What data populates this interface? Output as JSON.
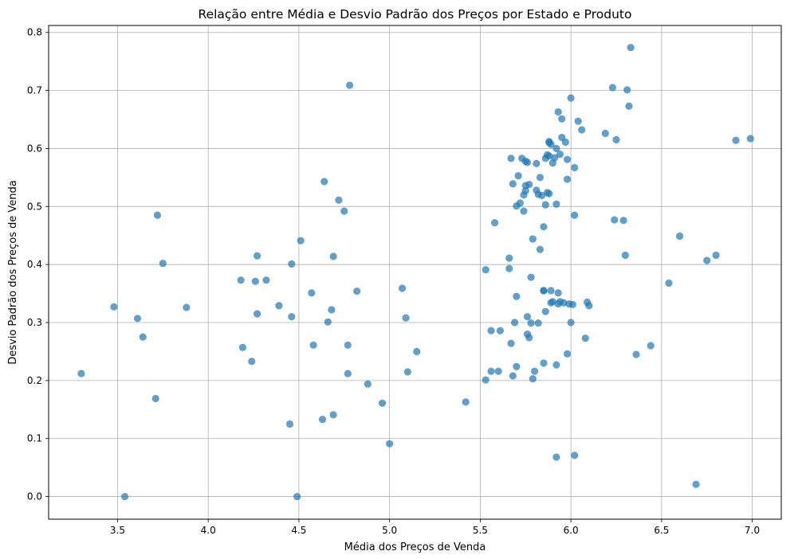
{
  "chart_data": {
    "type": "scatter",
    "title": "Relação entre Média e Desvio Padrão dos Preços por Estado e Produto",
    "xlabel": "Média dos Preços de Venda",
    "ylabel": "Desvio Padrão dos Preços de Venda",
    "xlim": [
      3.12,
      7.16
    ],
    "ylim": [
      -0.039,
      0.812
    ],
    "xticks": [
      3.5,
      4.0,
      4.5,
      5.0,
      5.5,
      6.0,
      6.5,
      7.0
    ],
    "xtick_labels": [
      "3.5",
      "4.0",
      "4.5",
      "5.0",
      "5.5",
      "6.0",
      "6.5",
      "7.0"
    ],
    "yticks": [
      0.0,
      0.1,
      0.2,
      0.3,
      0.4,
      0.5,
      0.6,
      0.7,
      0.8
    ],
    "ytick_labels": [
      "0.0",
      "0.1",
      "0.2",
      "0.3",
      "0.4",
      "0.5",
      "0.6",
      "0.7",
      "0.8"
    ],
    "grid": true,
    "legend": "none",
    "marker_color": "#1f77b4",
    "marker_alpha": 0.7,
    "points": [
      [
        3.3,
        0.212
      ],
      [
        3.48,
        0.327
      ],
      [
        3.54,
        0.0
      ],
      [
        3.61,
        0.307
      ],
      [
        3.64,
        0.275
      ],
      [
        3.71,
        0.169
      ],
      [
        3.72,
        0.485
      ],
      [
        3.75,
        0.402
      ],
      [
        3.88,
        0.326
      ],
      [
        4.18,
        0.373
      ],
      [
        4.19,
        0.257
      ],
      [
        4.24,
        0.233
      ],
      [
        4.26,
        0.371
      ],
      [
        4.27,
        0.415
      ],
      [
        4.27,
        0.315
      ],
      [
        4.32,
        0.373
      ],
      [
        4.39,
        0.329
      ],
      [
        4.46,
        0.31
      ],
      [
        4.46,
        0.401
      ],
      [
        4.45,
        0.125
      ],
      [
        4.49,
        0.0
      ],
      [
        4.51,
        0.441
      ],
      [
        4.57,
        0.351
      ],
      [
        4.58,
        0.261
      ],
      [
        4.63,
        0.133
      ],
      [
        4.64,
        0.543
      ],
      [
        4.66,
        0.301
      ],
      [
        4.68,
        0.322
      ],
      [
        4.69,
        0.414
      ],
      [
        4.69,
        0.141
      ],
      [
        4.72,
        0.511
      ],
      [
        4.75,
        0.492
      ],
      [
        4.77,
        0.261
      ],
      [
        4.77,
        0.212
      ],
      [
        4.78,
        0.709
      ],
      [
        4.82,
        0.354
      ],
      [
        4.88,
        0.194
      ],
      [
        4.96,
        0.161
      ],
      [
        5.0,
        0.091
      ],
      [
        5.07,
        0.359
      ],
      [
        5.09,
        0.308
      ],
      [
        5.1,
        0.215
      ],
      [
        5.15,
        0.25
      ],
      [
        5.42,
        0.163
      ],
      [
        5.53,
        0.391
      ],
      [
        5.53,
        0.201
      ],
      [
        5.56,
        0.216
      ],
      [
        5.56,
        0.286
      ],
      [
        5.58,
        0.472
      ],
      [
        5.6,
        0.216
      ],
      [
        5.61,
        0.286
      ],
      [
        5.66,
        0.411
      ],
      [
        5.66,
        0.393
      ],
      [
        5.67,
        0.264
      ],
      [
        5.67,
        0.583
      ],
      [
        5.68,
        0.539
      ],
      [
        5.68,
        0.208
      ],
      [
        5.69,
        0.3
      ],
      [
        5.7,
        0.345
      ],
      [
        5.7,
        0.224
      ],
      [
        5.7,
        0.501
      ],
      [
        5.71,
        0.553
      ],
      [
        5.72,
        0.506
      ],
      [
        5.73,
        0.583
      ],
      [
        5.74,
        0.52
      ],
      [
        5.74,
        0.492
      ],
      [
        5.75,
        0.536
      ],
      [
        5.75,
        0.527
      ],
      [
        5.75,
        0.578
      ],
      [
        5.76,
        0.576
      ],
      [
        5.76,
        0.28
      ],
      [
        5.76,
        0.31
      ],
      [
        5.77,
        0.274
      ],
      [
        5.77,
        0.538
      ],
      [
        5.78,
        0.299
      ],
      [
        5.78,
        0.378
      ],
      [
        5.79,
        0.444
      ],
      [
        5.79,
        0.203
      ],
      [
        5.8,
        0.216
      ],
      [
        5.81,
        0.574
      ],
      [
        5.81,
        0.528
      ],
      [
        5.82,
        0.521
      ],
      [
        5.82,
        0.299
      ],
      [
        5.83,
        0.55
      ],
      [
        5.83,
        0.426
      ],
      [
        5.84,
        0.519
      ],
      [
        5.85,
        0.465
      ],
      [
        5.85,
        0.355
      ],
      [
        5.85,
        0.355
      ],
      [
        5.85,
        0.23
      ],
      [
        5.86,
        0.319
      ],
      [
        5.86,
        0.503
      ],
      [
        5.86,
        0.583
      ],
      [
        5.87,
        0.524
      ],
      [
        5.87,
        0.589
      ],
      [
        5.88,
        0.522
      ],
      [
        5.88,
        0.61
      ],
      [
        5.88,
        0.612
      ],
      [
        5.88,
        0.587
      ],
      [
        5.89,
        0.355
      ],
      [
        5.89,
        0.607
      ],
      [
        5.89,
        0.334
      ],
      [
        5.9,
        0.336
      ],
      [
        5.9,
        0.575
      ],
      [
        5.91,
        0.584
      ],
      [
        5.92,
        0.504
      ],
      [
        5.92,
        0.6
      ],
      [
        5.92,
        0.227
      ],
      [
        5.92,
        0.068
      ],
      [
        5.93,
        0.351
      ],
      [
        5.93,
        0.663
      ],
      [
        5.93,
        0.332
      ],
      [
        5.94,
        0.59
      ],
      [
        5.94,
        0.336
      ],
      [
        5.95,
        0.651
      ],
      [
        5.95,
        0.619
      ],
      [
        5.96,
        0.334
      ],
      [
        5.97,
        0.611
      ],
      [
        5.98,
        0.547
      ],
      [
        5.98,
        0.246
      ],
      [
        5.98,
        0.581
      ],
      [
        5.99,
        0.332
      ],
      [
        6.0,
        0.3
      ],
      [
        6.0,
        0.687
      ],
      [
        6.01,
        0.331
      ],
      [
        6.02,
        0.071
      ],
      [
        6.02,
        0.485
      ],
      [
        6.02,
        0.567
      ],
      [
        6.04,
        0.647
      ],
      [
        6.06,
        0.632
      ],
      [
        6.08,
        0.273
      ],
      [
        6.09,
        0.335
      ],
      [
        6.1,
        0.329
      ],
      [
        6.19,
        0.626
      ],
      [
        6.23,
        0.705
      ],
      [
        6.24,
        0.477
      ],
      [
        6.25,
        0.615
      ],
      [
        6.29,
        0.476
      ],
      [
        6.3,
        0.416
      ],
      [
        6.31,
        0.701
      ],
      [
        6.32,
        0.673
      ],
      [
        6.33,
        0.774
      ],
      [
        6.36,
        0.245
      ],
      [
        6.44,
        0.26
      ],
      [
        6.54,
        0.368
      ],
      [
        6.6,
        0.449
      ],
      [
        6.69,
        0.021
      ],
      [
        6.75,
        0.407
      ],
      [
        6.8,
        0.416
      ],
      [
        6.91,
        0.614
      ],
      [
        6.99,
        0.617
      ]
    ]
  }
}
